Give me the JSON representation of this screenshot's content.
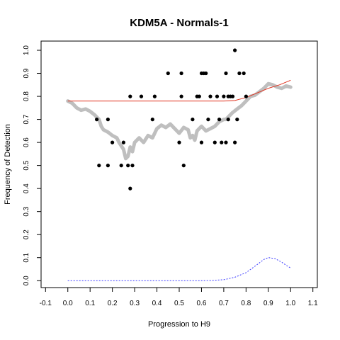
{
  "chart_data": {
    "type": "scatter",
    "title": "KDM5A - Normals-1",
    "xlabel": "Progression to H9",
    "ylabel": "Frequency of Detection",
    "xlim": [
      -0.12,
      1.12
    ],
    "ylim": [
      -0.03,
      1.04
    ],
    "x_ticks": [
      "-0.1",
      "0.0",
      "0.1",
      "0.2",
      "0.3",
      "0.4",
      "0.5",
      "0.6",
      "0.7",
      "0.8",
      "0.9",
      "1.0",
      "1.1"
    ],
    "y_ticks": [
      "0.0",
      "0.1",
      "0.2",
      "0.3",
      "0.4",
      "0.5",
      "0.6",
      "0.7",
      "0.8",
      "0.9",
      "1.0"
    ],
    "grid": false,
    "colors": {
      "points": "#000000",
      "smooth_band": "#bfbfbf",
      "fit_line": "#e0321e",
      "density_line": "#3b3bff"
    },
    "series": [
      {
        "type": "scatter",
        "color": "#000000",
        "points": [
          [
            0.13,
            0.7
          ],
          [
            0.14,
            0.5
          ],
          [
            0.18,
            0.5
          ],
          [
            0.18,
            0.7
          ],
          [
            0.2,
            0.6
          ],
          [
            0.24,
            0.5
          ],
          [
            0.25,
            0.6
          ],
          [
            0.27,
            0.5
          ],
          [
            0.28,
            0.4
          ],
          [
            0.28,
            0.8
          ],
          [
            0.29,
            0.5
          ],
          [
            0.33,
            0.8
          ],
          [
            0.38,
            0.7
          ],
          [
            0.39,
            0.8
          ],
          [
            0.45,
            0.9
          ],
          [
            0.5,
            0.6
          ],
          [
            0.51,
            0.9
          ],
          [
            0.51,
            0.8
          ],
          [
            0.52,
            0.5
          ],
          [
            0.56,
            0.7
          ],
          [
            0.58,
            0.8
          ],
          [
            0.59,
            0.8
          ],
          [
            0.6,
            0.6
          ],
          [
            0.6,
            0.9
          ],
          [
            0.61,
            0.9
          ],
          [
            0.62,
            0.9
          ],
          [
            0.63,
            0.7
          ],
          [
            0.64,
            0.8
          ],
          [
            0.66,
            0.6
          ],
          [
            0.67,
            0.8
          ],
          [
            0.68,
            0.7
          ],
          [
            0.69,
            0.6
          ],
          [
            0.7,
            0.8
          ],
          [
            0.71,
            0.9
          ],
          [
            0.71,
            0.6
          ],
          [
            0.72,
            0.8
          ],
          [
            0.72,
            0.7
          ],
          [
            0.73,
            0.8
          ],
          [
            0.74,
            0.8
          ],
          [
            0.75,
            1.0
          ],
          [
            0.75,
            0.6
          ],
          [
            0.76,
            0.7
          ],
          [
            0.77,
            0.9
          ],
          [
            0.79,
            0.9
          ],
          [
            0.8,
            0.8
          ]
        ]
      },
      {
        "type": "smooth_band",
        "color": "#bfbfbf",
        "points": [
          [
            0.0,
            0.78
          ],
          [
            0.02,
            0.77
          ],
          [
            0.04,
            0.75
          ],
          [
            0.06,
            0.74
          ],
          [
            0.08,
            0.745
          ],
          [
            0.1,
            0.735
          ],
          [
            0.12,
            0.72
          ],
          [
            0.14,
            0.7
          ],
          [
            0.15,
            0.67
          ],
          [
            0.16,
            0.655
          ],
          [
            0.18,
            0.645
          ],
          [
            0.2,
            0.63
          ],
          [
            0.22,
            0.62
          ],
          [
            0.23,
            0.6
          ],
          [
            0.25,
            0.57
          ],
          [
            0.26,
            0.53
          ],
          [
            0.27,
            0.54
          ],
          [
            0.28,
            0.58
          ],
          [
            0.29,
            0.56
          ],
          [
            0.3,
            0.6
          ],
          [
            0.32,
            0.62
          ],
          [
            0.34,
            0.6
          ],
          [
            0.36,
            0.63
          ],
          [
            0.38,
            0.62
          ],
          [
            0.4,
            0.66
          ],
          [
            0.42,
            0.675
          ],
          [
            0.44,
            0.665
          ],
          [
            0.46,
            0.68
          ],
          [
            0.48,
            0.66
          ],
          [
            0.5,
            0.64
          ],
          [
            0.52,
            0.665
          ],
          [
            0.54,
            0.655
          ],
          [
            0.55,
            0.62
          ],
          [
            0.56,
            0.63
          ],
          [
            0.57,
            0.61
          ],
          [
            0.58,
            0.65
          ],
          [
            0.6,
            0.67
          ],
          [
            0.62,
            0.65
          ],
          [
            0.64,
            0.66
          ],
          [
            0.66,
            0.67
          ],
          [
            0.68,
            0.69
          ],
          [
            0.7,
            0.7
          ],
          [
            0.71,
            0.7
          ],
          [
            0.72,
            0.71
          ],
          [
            0.74,
            0.73
          ],
          [
            0.76,
            0.745
          ],
          [
            0.78,
            0.76
          ],
          [
            0.8,
            0.78
          ],
          [
            0.82,
            0.8
          ],
          [
            0.84,
            0.805
          ],
          [
            0.86,
            0.82
          ],
          [
            0.88,
            0.835
          ],
          [
            0.9,
            0.855
          ],
          [
            0.92,
            0.85
          ],
          [
            0.94,
            0.84
          ],
          [
            0.96,
            0.835
          ],
          [
            0.98,
            0.845
          ],
          [
            1.0,
            0.84
          ]
        ]
      },
      {
        "type": "line",
        "color": "#e0321e",
        "points": [
          [
            0.0,
            0.78
          ],
          [
            0.1,
            0.78
          ],
          [
            0.2,
            0.78
          ],
          [
            0.3,
            0.78
          ],
          [
            0.4,
            0.78
          ],
          [
            0.5,
            0.78
          ],
          [
            0.6,
            0.78
          ],
          [
            0.7,
            0.78
          ],
          [
            0.75,
            0.782
          ],
          [
            0.8,
            0.795
          ],
          [
            0.85,
            0.815
          ],
          [
            0.9,
            0.835
          ],
          [
            0.95,
            0.85
          ],
          [
            1.0,
            0.87
          ]
        ]
      },
      {
        "type": "dashed_line",
        "color": "#3b3bff",
        "points": [
          [
            0.0,
            0.0
          ],
          [
            0.1,
            0.0
          ],
          [
            0.2,
            0.0
          ],
          [
            0.3,
            0.0
          ],
          [
            0.4,
            0.0
          ],
          [
            0.5,
            0.0
          ],
          [
            0.6,
            0.0
          ],
          [
            0.65,
            0.001
          ],
          [
            0.7,
            0.004
          ],
          [
            0.75,
            0.015
          ],
          [
            0.8,
            0.035
          ],
          [
            0.85,
            0.07
          ],
          [
            0.88,
            0.092
          ],
          [
            0.9,
            0.1
          ],
          [
            0.93,
            0.096
          ],
          [
            0.96,
            0.08
          ],
          [
            0.98,
            0.067
          ],
          [
            1.0,
            0.055
          ]
        ]
      }
    ]
  }
}
